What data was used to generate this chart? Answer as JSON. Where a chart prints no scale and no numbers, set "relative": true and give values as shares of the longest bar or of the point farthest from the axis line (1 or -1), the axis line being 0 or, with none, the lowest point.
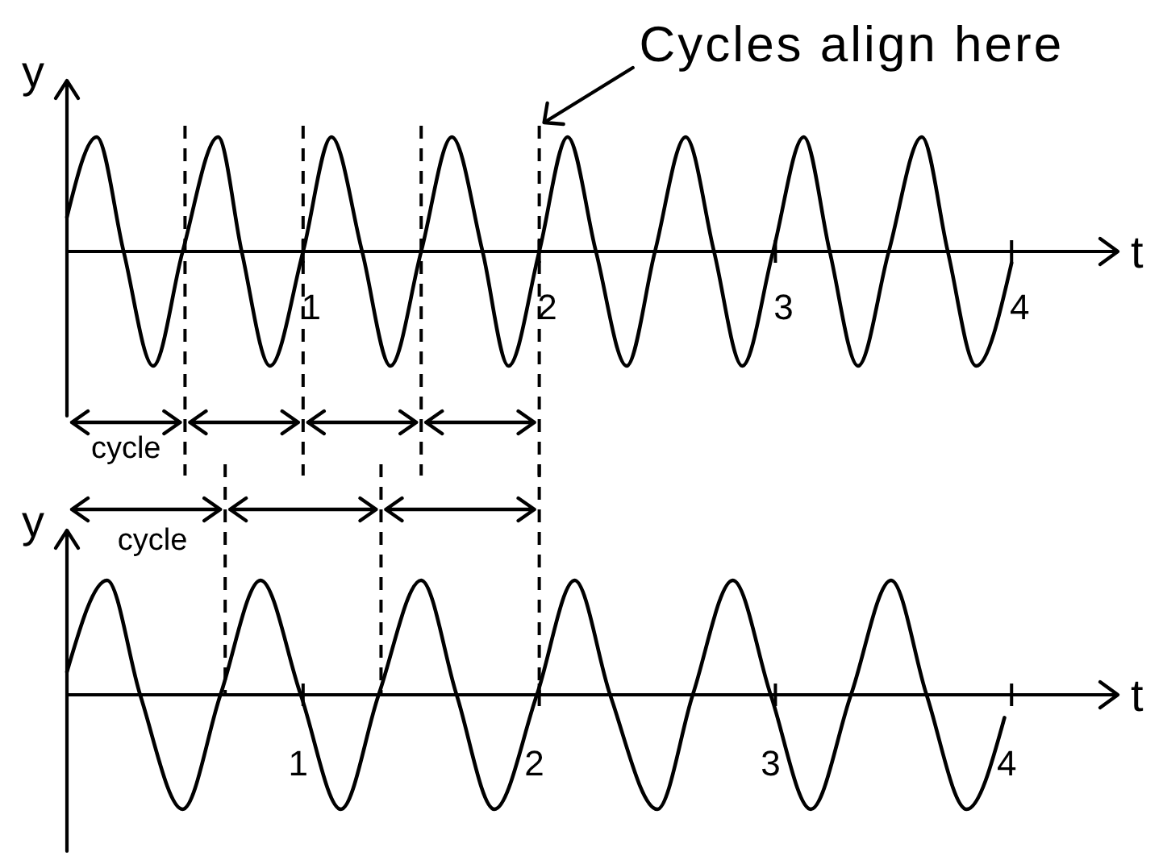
{
  "chart_data": [
    {
      "type": "line",
      "xlabel": "t",
      "ylabel": "y",
      "relative": true,
      "xlim": [
        0,
        4.45
      ],
      "xticks": [
        1,
        2,
        3,
        4
      ],
      "color": "#000000",
      "x": [
        0,
        0.126,
        0.24,
        0.365,
        0.49,
        0.64,
        0.74,
        0.86,
        1.0,
        1.12,
        1.25,
        1.37,
        1.5,
        1.63,
        1.76,
        1.87,
        2.0,
        2.12,
        2.24,
        2.37,
        2.49,
        2.62,
        2.74,
        2.86,
        2.99,
        3.12,
        3.23,
        3.35,
        3.48,
        3.62,
        3.73,
        3.85,
        4.0
      ],
      "values": [
        0.3,
        1,
        0,
        -1,
        0,
        1,
        0,
        -1,
        0,
        1,
        0,
        -1,
        0,
        1,
        0,
        -1,
        0,
        1,
        0,
        -1,
        0,
        1,
        0,
        -1,
        0,
        1,
        0,
        -1,
        0,
        1,
        0,
        -1,
        -0.1
      ],
      "ref_lines": [
        {
          "axis": "x",
          "value": 0.5,
          "line_style": "dashed"
        },
        {
          "axis": "x",
          "value": 1,
          "line_style": "dashed"
        },
        {
          "axis": "x",
          "value": 1.5,
          "line_style": "dashed"
        },
        {
          "axis": "x",
          "value": 2,
          "line_style": "dashed"
        }
      ],
      "annotations": [
        "cycle",
        "Cycles align here"
      ]
    },
    {
      "type": "line",
      "xlabel": "t",
      "ylabel": "y",
      "relative": true,
      "xlim": [
        0,
        4.45
      ],
      "xticks": [
        1,
        2,
        3,
        4
      ],
      "color": "#000000",
      "x": [
        0,
        0.17,
        0.31,
        0.49,
        0.65,
        0.82,
        0.99,
        1.16,
        1.32,
        1.5,
        1.65,
        1.81,
        1.99,
        2.15,
        2.3,
        2.5,
        2.65,
        2.82,
        2.98,
        3.15,
        3.32,
        3.49,
        3.64,
        3.81,
        3.97
      ],
      "values": [
        0.2,
        1,
        0,
        -1,
        0,
        1,
        0,
        -1,
        0,
        1,
        0,
        -1,
        0,
        1,
        0,
        -1,
        0,
        1,
        0,
        -1,
        0,
        1,
        0,
        -1,
        -0.2
      ],
      "ref_lines": [
        {
          "axis": "x",
          "value": 0.67,
          "line_style": "dashed"
        },
        {
          "axis": "x",
          "value": 1.33,
          "line_style": "dashed"
        },
        {
          "axis": "x",
          "value": 2,
          "line_style": "dashed"
        }
      ],
      "annotations": [
        "cycle"
      ]
    }
  ]
}
